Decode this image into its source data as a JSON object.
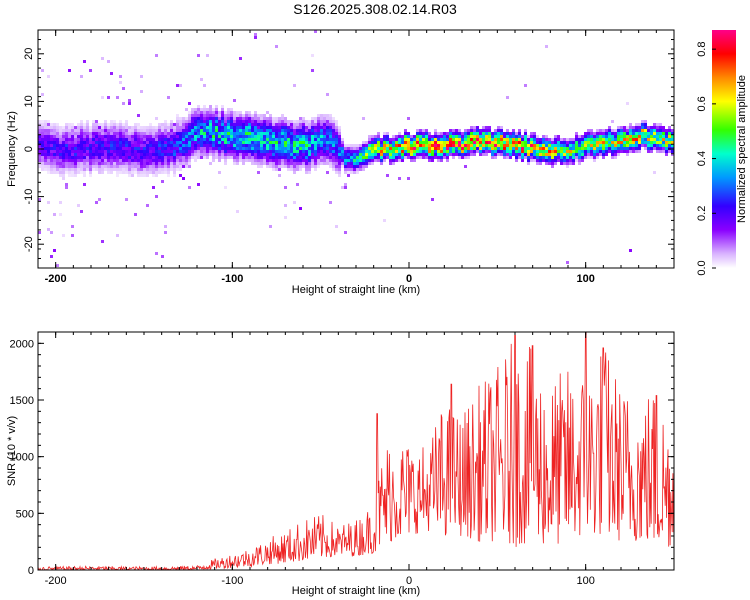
{
  "figure": {
    "title": "S126.2025.308.02.14.R03"
  },
  "chart_data": [
    {
      "type": "heatmap",
      "title": "",
      "xlabel": "Height of straight line (km)",
      "ylabel": "Frequency (Hz)",
      "xlim": [
        -210,
        150
      ],
      "ylim": [
        -25,
        25
      ],
      "x_ticks": [
        -200,
        -100,
        0,
        100
      ],
      "y_ticks": [
        20,
        10,
        0,
        -10,
        -20
      ],
      "colorbar": {
        "label": "Normalized spectral amplitude",
        "range": [
          0.0,
          0.87
        ],
        "ticks": [
          0.0,
          0.2,
          0.4,
          0.6,
          0.8
        ],
        "colormap": [
          "#ffffff",
          "#d9b3ff",
          "#8a00ff",
          "#3300ff",
          "#0099ff",
          "#00ffcc",
          "#33ff00",
          "#ffff00",
          "#ff8800",
          "#ff0000",
          "#ff0088"
        ]
      },
      "ridge": {
        "x": [
          -210,
          -190,
          -170,
          -150,
          -130,
          -120,
          -100,
          -80,
          -60,
          -45,
          -35,
          -20,
          0,
          20,
          40,
          60,
          80,
          90,
          100,
          120,
          130,
          150
        ],
        "freq": [
          1,
          0,
          1,
          0,
          1,
          4,
          3,
          2,
          1,
          2,
          -2,
          0,
          1,
          1,
          2,
          1,
          0,
          0,
          1,
          2,
          3,
          2
        ],
        "amplitude": [
          0.22,
          0.25,
          0.25,
          0.24,
          0.3,
          0.42,
          0.45,
          0.45,
          0.45,
          0.35,
          0.35,
          0.65,
          0.8,
          0.82,
          0.82,
          0.8,
          0.7,
          0.6,
          0.65,
          0.7,
          0.7,
          0.6
        ]
      }
    },
    {
      "type": "line",
      "title": "",
      "xlabel": "Height of straight line (km)",
      "ylabel": "SNR (10 * v/v)",
      "xlim": [
        -210,
        150
      ],
      "ylim": [
        0,
        2100
      ],
      "x_ticks": [
        -200,
        -100,
        0,
        100
      ],
      "y_ticks": [
        0,
        500,
        1000,
        1500,
        2000
      ],
      "color": "#ee2222",
      "series": [
        {
          "name": "SNR",
          "x": [
            -210,
            -200,
            -180,
            -160,
            -140,
            -120,
            -110,
            -100,
            -90,
            -80,
            -70,
            -60,
            -50,
            -40,
            -30,
            -20,
            -15,
            -10,
            0,
            10,
            20,
            30,
            40,
            50,
            60,
            70,
            80,
            90,
            100,
            110,
            120,
            130,
            140,
            150
          ],
          "lower": [
            0,
            0,
            0,
            0,
            0,
            0,
            10,
            20,
            30,
            50,
            60,
            80,
            100,
            120,
            120,
            150,
            200,
            250,
            300,
            350,
            300,
            300,
            250,
            250,
            200,
            250,
            200,
            250,
            300,
            300,
            250,
            250,
            200,
            200
          ],
          "upper": [
            30,
            30,
            35,
            30,
            30,
            40,
            100,
            150,
            200,
            280,
            350,
            450,
            500,
            400,
            450,
            600,
            1050,
            1250,
            1150,
            1100,
            1500,
            1400,
            1650,
            1800,
            2070,
            1950,
            1700,
            1800,
            1800,
            2050,
            1650,
            1600,
            1650,
            1300
          ],
          "peaks": [
            [
              -18,
              1380
            ],
            [
              24,
              1640
            ],
            [
              60,
              2070
            ],
            [
              70,
              1980
            ],
            [
              100,
              2100
            ],
            [
              110,
              1960
            ],
            [
              140,
              1540
            ]
          ]
        }
      ]
    }
  ]
}
